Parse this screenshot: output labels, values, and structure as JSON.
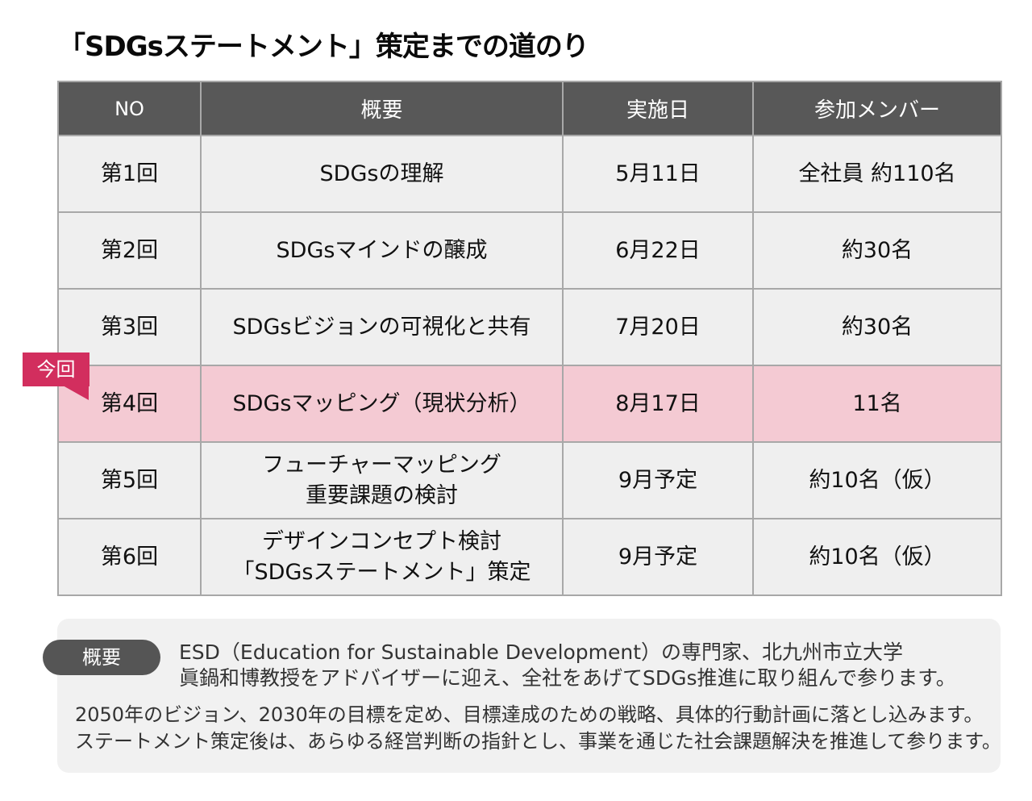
{
  "title": "「SDGsステートメント」策定までの道のり",
  "table": {
    "headers": {
      "no": "NO",
      "summary": "概要",
      "date": "実施日",
      "members": "参加メンバー"
    },
    "rows": [
      {
        "no": "第1回",
        "summary": [
          "SDGsの理解"
        ],
        "date": "5月11日",
        "members": "全社員 約110名",
        "current": false
      },
      {
        "no": "第2回",
        "summary": [
          "SDGsマインドの醸成"
        ],
        "date": "6月22日",
        "members": "約30名",
        "current": false
      },
      {
        "no": "第3回",
        "summary": [
          "SDGsビジョンの可視化と共有"
        ],
        "date": "7月20日",
        "members": "約30名",
        "current": false
      },
      {
        "no": "第4回",
        "summary": [
          "SDGsマッピング（現状分析）"
        ],
        "date": "8月17日",
        "members": "11名",
        "current": true
      },
      {
        "no": "第5回",
        "summary": [
          "フューチャーマッピング",
          "重要課題の検討"
        ],
        "date": "9月予定",
        "members": "約10名（仮）",
        "current": false
      },
      {
        "no": "第6回",
        "summary": [
          "デザインコンセプト検討",
          "「SDGsステートメント」策定"
        ],
        "date": "9月予定",
        "members": "約10名（仮）",
        "current": false
      }
    ]
  },
  "current_badge": {
    "label": "今回",
    "color": "#d22e5e"
  },
  "summary": {
    "pill_label": "概要",
    "lead": [
      "ESD（Education for Sustainable Development）の専門家、北九州市立大学",
      "眞鍋和博教授をアドバイザーに迎え、全社をあげてSDGs推進に取り組んで参ります。"
    ],
    "body": [
      "2050年のビジョン、2030年の目標を定め、目標達成のための戦略、具体的行動計画に落とし込みます。",
      "ステートメント策定後は、あらゆる経営判断の指針とし、事業を通じた社会課題解決を推進して参ります。"
    ]
  },
  "colors": {
    "header_bg": "#585858",
    "cell_bg": "#efefef",
    "current_row_bg": "#f4cad3",
    "border": "#a8a8a8",
    "summary_bg": "#f1f1f1",
    "pill_bg": "#555555"
  }
}
